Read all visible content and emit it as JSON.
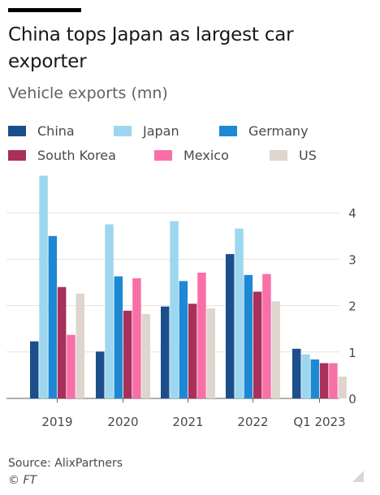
{
  "title": "China tops Japan as largest car exporter",
  "subtitle": "Vehicle exports (mn)",
  "source": "Source: AlixPartners",
  "logo": "© FT",
  "chart_data": {
    "type": "bar",
    "title": "China tops Japan as largest car exporter",
    "subtitle": "Vehicle exports (mn)",
    "xlabel": "",
    "ylabel": "",
    "categories": [
      "2019",
      "2020",
      "2021",
      "2022",
      "Q1 2023"
    ],
    "ylim": [
      0,
      4.5
    ],
    "yticks": [
      0,
      1,
      2,
      3,
      4
    ],
    "grid": true,
    "legend_position": "top",
    "series": [
      {
        "name": "China",
        "color": "#1a4f8b",
        "values": [
          1.23,
          1.01,
          1.98,
          3.11,
          1.07
        ]
      },
      {
        "name": "Japan",
        "color": "#9ed6ef",
        "values": [
          4.8,
          3.75,
          3.82,
          3.66,
          0.95
        ]
      },
      {
        "name": "Germany",
        "color": "#1d89d4",
        "values": [
          3.5,
          2.63,
          2.53,
          2.66,
          0.84
        ]
      },
      {
        "name": "South Korea",
        "color": "#a8305b",
        "values": [
          2.4,
          1.89,
          2.04,
          2.3,
          0.76
        ]
      },
      {
        "name": "Mexico",
        "color": "#f96fa7",
        "values": [
          1.37,
          2.59,
          2.71,
          2.68,
          0.76
        ]
      },
      {
        "name": "US",
        "color": "#dfd5cc",
        "values": [
          2.26,
          1.82,
          1.94,
          2.09,
          0.47
        ]
      }
    ]
  }
}
